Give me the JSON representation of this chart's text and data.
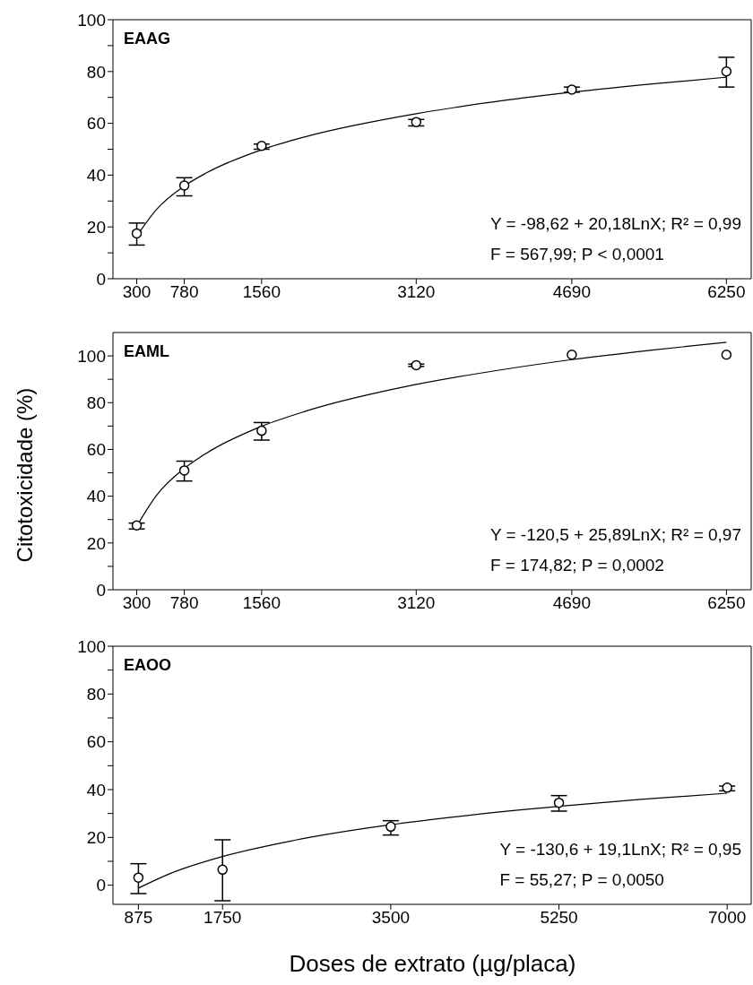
{
  "chart_data": [
    {
      "type": "scatter",
      "marker": "circle",
      "xlim": [
        60,
        6500
      ],
      "xticks": [
        300,
        780,
        1560,
        3120,
        4690,
        6250
      ],
      "ylim": [
        0,
        100
      ],
      "yticks": [
        0,
        {
          "value": 10,
          "label": null
        },
        20,
        {
          "value": 30,
          "label": null
        },
        40,
        {
          "value": 50,
          "label": null
        },
        60,
        {
          "value": 70,
          "label": null
        },
        80,
        {
          "value": 90,
          "label": null
        },
        100
      ],
      "annotations": [
        "EAAG",
        "Y = -98,62 + 20,18LnX; R² = 0,99",
        "F = 567,99; P < 0,0001"
      ],
      "series": [
        {
          "type": "scatter",
          "color": "#000000",
          "x": [
            300,
            780,
            1560,
            3120,
            4690,
            6250
          ],
          "values": [
            17.5,
            36,
            51.3,
            60.5,
            73,
            80
          ],
          "errors": [
            [
              13,
              21.5
            ],
            [
              32,
              39
            ],
            [
              50,
              52
            ],
            [
              59,
              61.5
            ],
            [
              72,
              74
            ],
            [
              74,
              85.5
            ]
          ]
        },
        {
          "type": "line",
          "color": "#000000",
          "marker": "none",
          "x": [
            300,
            500,
            780,
            1000,
            1560,
            2000,
            3120,
            4000,
            4690,
            5500,
            6250
          ],
          "values": [
            16.5,
            26.8,
            35.8,
            40.8,
            49.8,
            54.8,
            63.7,
            68.8,
            72,
            75.2,
            77.8
          ]
        }
      ]
    },
    {
      "type": "scatter",
      "marker": "circle",
      "ylabel": "Citotoxicidade (%)",
      "xlim": [
        60,
        6500
      ],
      "xticks": [
        300,
        780,
        1560,
        3120,
        4690,
        6250
      ],
      "ylim": [
        0,
        110
      ],
      "yticks": [
        0,
        {
          "value": 10,
          "label": null
        },
        20,
        {
          "value": 30,
          "label": null
        },
        40,
        {
          "value": 50,
          "label": null
        },
        60,
        {
          "value": 70,
          "label": null
        },
        80,
        {
          "value": 90,
          "label": null
        },
        100
      ],
      "annotations": [
        "EAML",
        "Y = -120,5 + 25,89LnX; R² = 0,97",
        "F = 174,82; P = 0,0002"
      ],
      "series": [
        {
          "type": "scatter",
          "color": "#000000",
          "x": [
            300,
            780,
            1560,
            3120,
            4690,
            6250
          ],
          "values": [
            27.5,
            51,
            68,
            96,
            100.5,
            100.5
          ],
          "errors": [
            [
              26,
              28.5
            ],
            [
              46.5,
              55
            ],
            [
              64,
              71.5
            ],
            [
              95.5,
              96.5
            ],
            null,
            null
          ]
        },
        {
          "type": "line",
          "color": "#000000",
          "marker": "none",
          "x": [
            300,
            500,
            780,
            1000,
            1560,
            2000,
            3120,
            4000,
            4690,
            5500,
            6250
          ],
          "values": [
            27.2,
            40.4,
            51.9,
            58.3,
            69.9,
            76.3,
            87.8,
            94.2,
            98.4,
            102.5,
            105.8
          ]
        }
      ]
    },
    {
      "type": "scatter",
      "marker": "circle",
      "xlabel": "Doses de extrato (µg/placa)",
      "xlim": [
        610,
        7250
      ],
      "xticks": [
        875,
        1750,
        3500,
        5250,
        7000
      ],
      "ylim": [
        -8,
        100
      ],
      "yticks": [
        0,
        {
          "value": 10,
          "label": null
        },
        20,
        {
          "value": 30,
          "label": null
        },
        40,
        {
          "value": 50,
          "label": null
        },
        60,
        {
          "value": 70,
          "label": null
        },
        80,
        {
          "value": 90,
          "label": null
        },
        100
      ],
      "annotations": [
        "EAOO",
        "Y = -130,6 + 19,1LnX; R² = 0,95",
        "F = 55,27; P = 0,0050"
      ],
      "series": [
        {
          "type": "scatter",
          "color": "#000000",
          "x": [
            875,
            1750,
            3500,
            5250,
            7000
          ],
          "values": [
            3.2,
            6.5,
            24.5,
            34.5,
            40.8
          ],
          "errors": [
            [
              -3.5,
              9
            ],
            [
              -6.5,
              19
            ],
            [
              21,
              27
            ],
            [
              31,
              37.5
            ],
            [
              39.5,
              41.5
            ]
          ]
        },
        {
          "type": "line",
          "color": "#000000",
          "marker": "none",
          "x": [
            875,
            1200,
            1750,
            2500,
            3500,
            4300,
            5250,
            6100,
            7000
          ],
          "values": [
            -1.2,
            4.8,
            12,
            18.8,
            25.3,
            29.2,
            33,
            35.9,
            38.5
          ]
        }
      ]
    }
  ]
}
